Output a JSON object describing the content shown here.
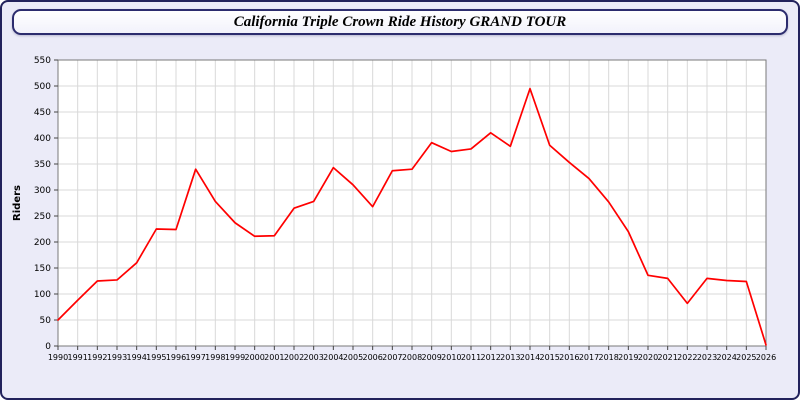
{
  "page": {
    "title": "California Triple Crown Ride History GRAND TOUR"
  },
  "colors": {
    "page_background": "#ebebf8",
    "plot_background": "#ffffff",
    "grid_color": "#d9d9d9",
    "plot_border_color": "#7a7a7a",
    "outer_border_color": "#22225c",
    "line_color": "#ff0000",
    "tick_label_color": "#000000"
  },
  "chart_data": {
    "type": "line",
    "title": "California Triple Crown Ride History GRAND TOUR",
    "xlabel": "",
    "ylabel": "Riders",
    "ylim": [
      0,
      550
    ],
    "ytick_step": 50,
    "grid": true,
    "legend_position": "none",
    "line_color": "#ff0000",
    "x": [
      "1990",
      "1991",
      "1992",
      "1993",
      "1994",
      "1995",
      "1996",
      "1997",
      "1998",
      "1999",
      "2000",
      "2001",
      "2002",
      "2003",
      "2004",
      "2005",
      "2006",
      "2007",
      "2008",
      "2009",
      "2010",
      "2011",
      "2012",
      "2013",
      "2014",
      "2015",
      "2016",
      "2017",
      "2018",
      "2019",
      "2020",
      "2021",
      "2022",
      "2023",
      "2024",
      "2025",
      "2026"
    ],
    "values": [
      50,
      88,
      125,
      127,
      160,
      225,
      224,
      340,
      278,
      237,
      211,
      212,
      265,
      278,
      343,
      310,
      268,
      337,
      340,
      391,
      374,
      379,
      410,
      384,
      495,
      386,
      353,
      322,
      277,
      220,
      136,
      130,
      82,
      130,
      126,
      124,
      2
    ]
  }
}
